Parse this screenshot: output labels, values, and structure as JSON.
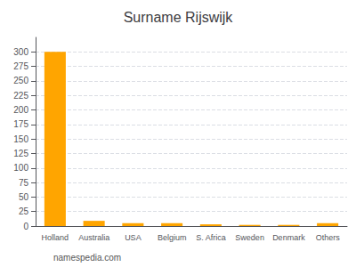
{
  "chart_data": {
    "type": "bar",
    "title": "Surname Rijswijk",
    "categories": [
      "Holland",
      "Australia",
      "USA",
      "Belgium",
      "S. Africa",
      "Sweden",
      "Denmark",
      "Others"
    ],
    "values": [
      300,
      9,
      5,
      5,
      3,
      2,
      2,
      5
    ],
    "color": "#FFA500",
    "ylim": [
      0,
      325
    ],
    "yticks": [
      0,
      25,
      50,
      75,
      100,
      125,
      150,
      175,
      200,
      225,
      250,
      275,
      300
    ],
    "grid": true,
    "annotations": [
      "namespedia.com"
    ]
  }
}
